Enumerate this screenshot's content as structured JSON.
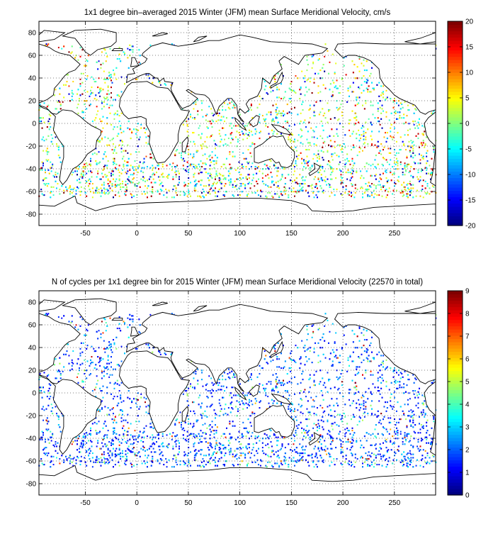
{
  "chart_data": [
    {
      "type": "heatmap",
      "title": "1x1 degree bin–averaged 2015 Winter (JFM) mean Surface Meridional Velocity, cm/s",
      "xlabel": "",
      "ylabel": "",
      "xlim": [
        -95,
        290
      ],
      "ylim": [
        -90,
        90
      ],
      "xticks": [
        -50,
        0,
        50,
        100,
        150,
        200,
        250
      ],
      "yticks": [
        80,
        60,
        40,
        20,
        0,
        -20,
        -40,
        -60,
        -80
      ],
      "grid": true,
      "colorbar": {
        "min": -20,
        "max": 20,
        "ticks": [
          20,
          15,
          10,
          5,
          0,
          -5,
          -10,
          -15,
          -20
        ],
        "colormap": "jet"
      },
      "field_summary": "scattered 1x1 degree bins along drifter tracks; values range about -20 to 20 cm/s, strongest in western boundary currents and equatorial band"
    },
    {
      "type": "heatmap",
      "title": "N of cycles per 1x1 degree bin for 2015 Winter (JFM) mean Surface Meridional Velocity (22570 in total)",
      "xlabel": "",
      "ylabel": "",
      "xlim": [
        -95,
        290
      ],
      "ylim": [
        -90,
        90
      ],
      "xticks": [
        -50,
        0,
        50,
        100,
        150,
        200,
        250
      ],
      "yticks": [
        80,
        60,
        40,
        20,
        0,
        -20,
        -40,
        -60,
        -80
      ],
      "grid": true,
      "colorbar": {
        "min": 0,
        "max": 9,
        "ticks": [
          9,
          8,
          7,
          6,
          5,
          4,
          3,
          2,
          1,
          0
        ],
        "colormap": "jet"
      },
      "field_summary": "most bins hold 1-3 cycles (blue/cyan); higher counts near coasts such as Red Sea, Arabian Sea, Japan and Gulf of Alaska"
    }
  ],
  "colors": {
    "jet_low": "#00008f",
    "jet_mid": "#7fff7f",
    "jet_high": "#800000",
    "coastline": "#000000",
    "grid": "#000000"
  }
}
